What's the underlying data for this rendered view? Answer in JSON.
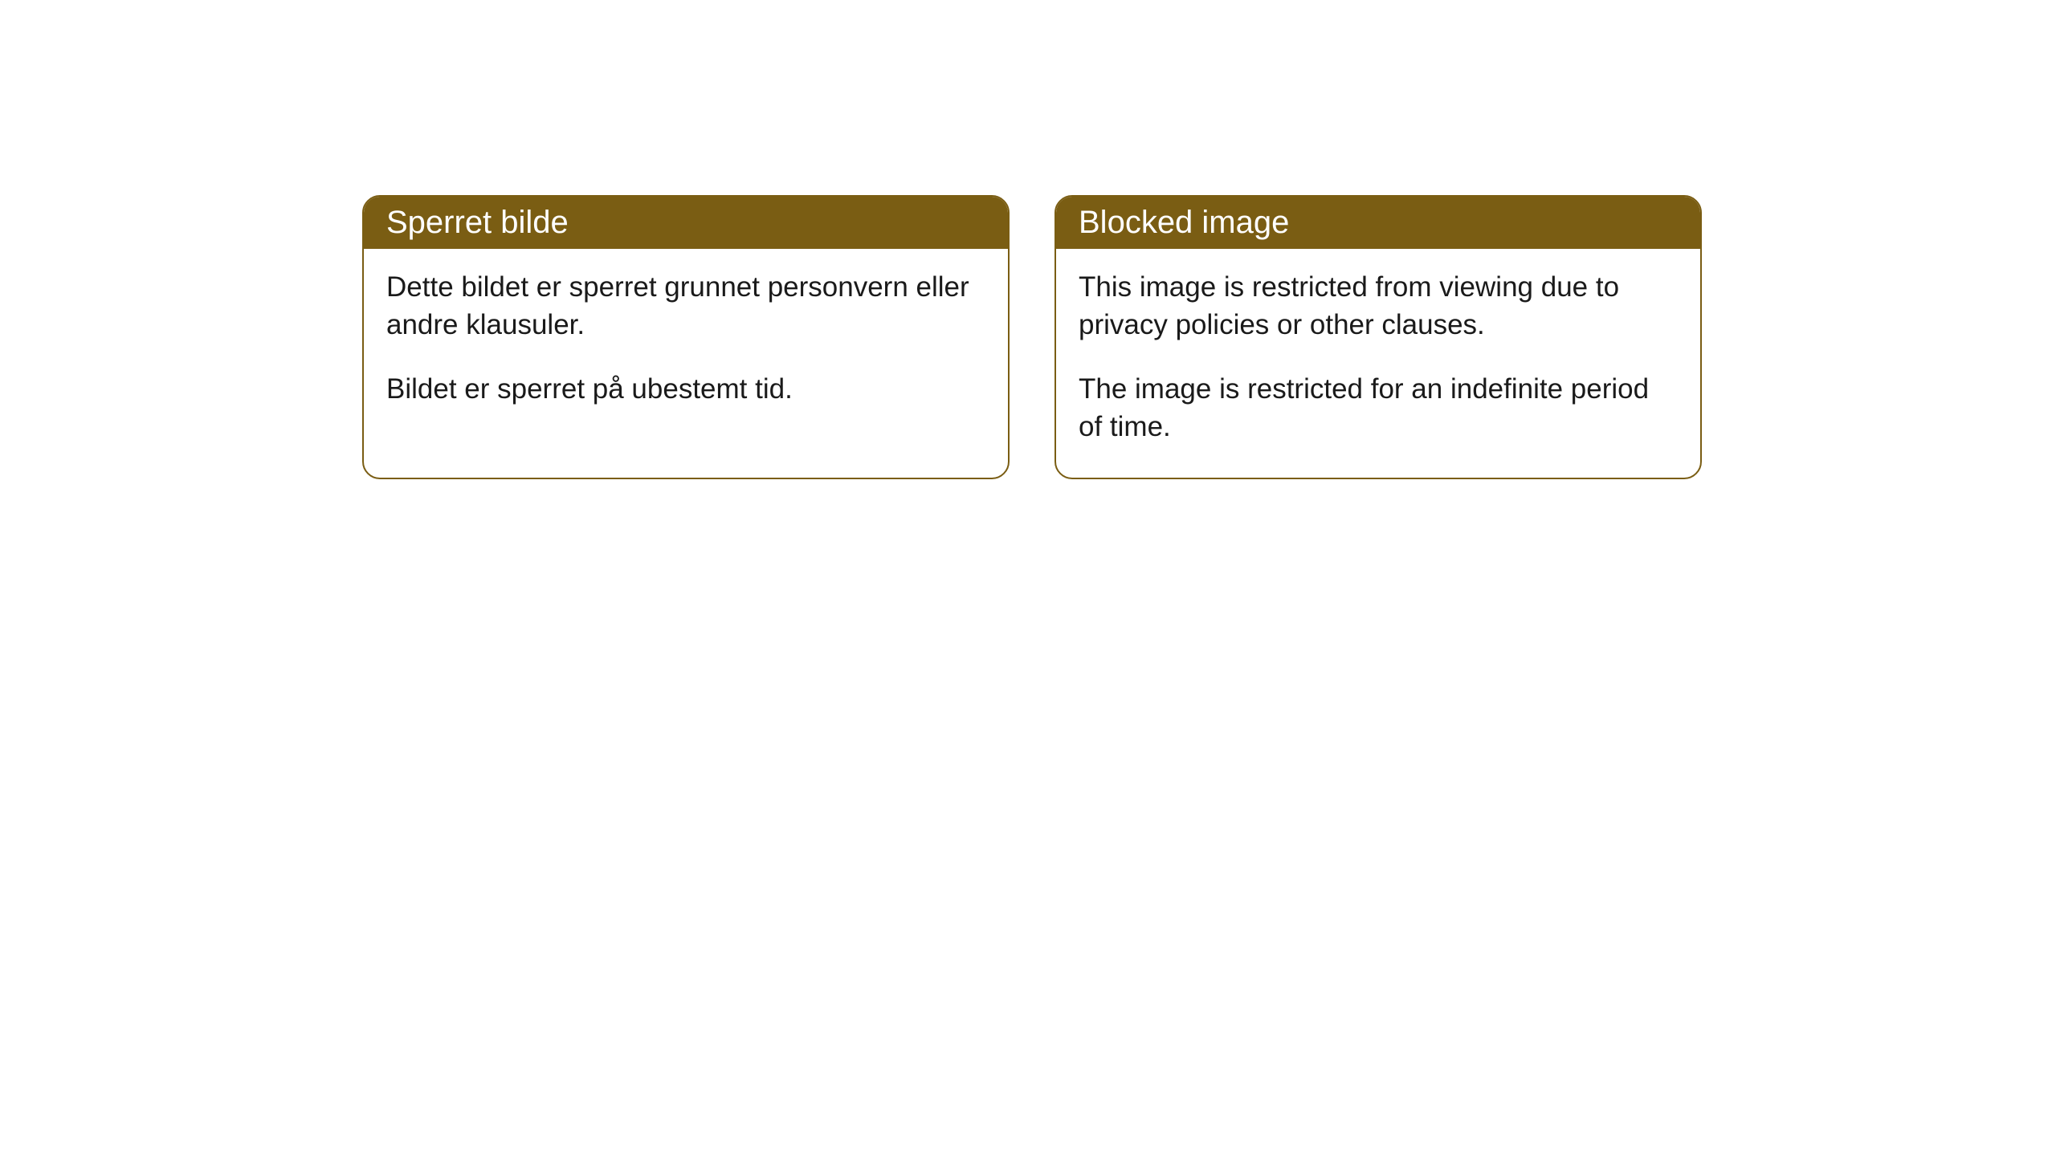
{
  "cards": [
    {
      "title": "Sperret bilde",
      "paragraph1": "Dette bildet er sperret grunnet personvern eller andre klausuler.",
      "paragraph2": "Bildet er sperret på ubestemt tid."
    },
    {
      "title": "Blocked image",
      "paragraph1": "This image is restricted from viewing due to privacy policies or other clauses.",
      "paragraph2": "The image is restricted for an indefinite period of time."
    }
  ],
  "styling": {
    "header_background": "#7a5d13",
    "header_text_color": "#ffffff",
    "border_color": "#7a5d13",
    "body_background": "#ffffff",
    "body_text_color": "#1a1a1a",
    "border_radius": 22,
    "title_fontsize": 40,
    "body_fontsize": 35
  }
}
